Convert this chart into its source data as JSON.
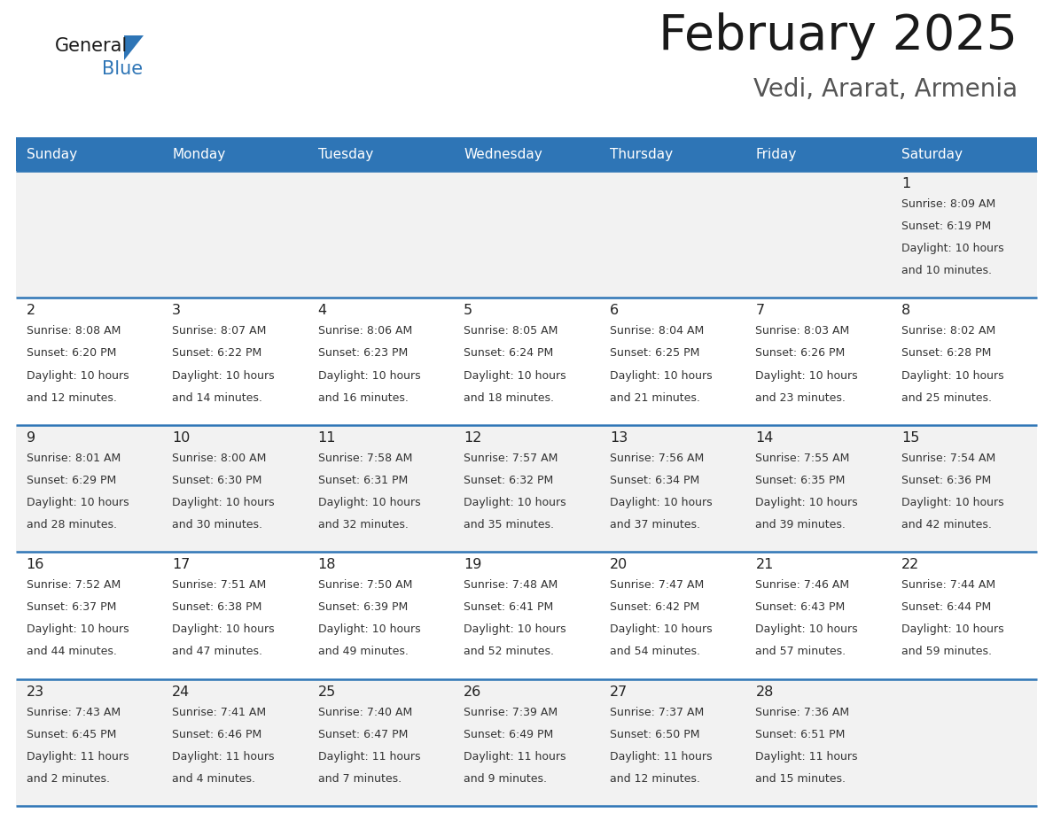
{
  "title": "February 2025",
  "subtitle": "Vedi, Ararat, Armenia",
  "header_bg": "#2e75b6",
  "header_text_color": "#ffffff",
  "days_of_week": [
    "Sunday",
    "Monday",
    "Tuesday",
    "Wednesday",
    "Thursday",
    "Friday",
    "Saturday"
  ],
  "grid_line_color": "#2e75b6",
  "row_bg": [
    "#f2f2f2",
    "#ffffff",
    "#f2f2f2",
    "#ffffff",
    "#f2f2f2"
  ],
  "calendar_data": [
    [
      null,
      null,
      null,
      null,
      null,
      null,
      {
        "day": 1,
        "sunrise": "8:09 AM",
        "sunset": "6:19 PM",
        "daylight": "10 hours and 10 minutes."
      }
    ],
    [
      {
        "day": 2,
        "sunrise": "8:08 AM",
        "sunset": "6:20 PM",
        "daylight": "10 hours and 12 minutes."
      },
      {
        "day": 3,
        "sunrise": "8:07 AM",
        "sunset": "6:22 PM",
        "daylight": "10 hours and 14 minutes."
      },
      {
        "day": 4,
        "sunrise": "8:06 AM",
        "sunset": "6:23 PM",
        "daylight": "10 hours and 16 minutes."
      },
      {
        "day": 5,
        "sunrise": "8:05 AM",
        "sunset": "6:24 PM",
        "daylight": "10 hours and 18 minutes."
      },
      {
        "day": 6,
        "sunrise": "8:04 AM",
        "sunset": "6:25 PM",
        "daylight": "10 hours and 21 minutes."
      },
      {
        "day": 7,
        "sunrise": "8:03 AM",
        "sunset": "6:26 PM",
        "daylight": "10 hours and 23 minutes."
      },
      {
        "day": 8,
        "sunrise": "8:02 AM",
        "sunset": "6:28 PM",
        "daylight": "10 hours and 25 minutes."
      }
    ],
    [
      {
        "day": 9,
        "sunrise": "8:01 AM",
        "sunset": "6:29 PM",
        "daylight": "10 hours and 28 minutes."
      },
      {
        "day": 10,
        "sunrise": "8:00 AM",
        "sunset": "6:30 PM",
        "daylight": "10 hours and 30 minutes."
      },
      {
        "day": 11,
        "sunrise": "7:58 AM",
        "sunset": "6:31 PM",
        "daylight": "10 hours and 32 minutes."
      },
      {
        "day": 12,
        "sunrise": "7:57 AM",
        "sunset": "6:32 PM",
        "daylight": "10 hours and 35 minutes."
      },
      {
        "day": 13,
        "sunrise": "7:56 AM",
        "sunset": "6:34 PM",
        "daylight": "10 hours and 37 minutes."
      },
      {
        "day": 14,
        "sunrise": "7:55 AM",
        "sunset": "6:35 PM",
        "daylight": "10 hours and 39 minutes."
      },
      {
        "day": 15,
        "sunrise": "7:54 AM",
        "sunset": "6:36 PM",
        "daylight": "10 hours and 42 minutes."
      }
    ],
    [
      {
        "day": 16,
        "sunrise": "7:52 AM",
        "sunset": "6:37 PM",
        "daylight": "10 hours and 44 minutes."
      },
      {
        "day": 17,
        "sunrise": "7:51 AM",
        "sunset": "6:38 PM",
        "daylight": "10 hours and 47 minutes."
      },
      {
        "day": 18,
        "sunrise": "7:50 AM",
        "sunset": "6:39 PM",
        "daylight": "10 hours and 49 minutes."
      },
      {
        "day": 19,
        "sunrise": "7:48 AM",
        "sunset": "6:41 PM",
        "daylight": "10 hours and 52 minutes."
      },
      {
        "day": 20,
        "sunrise": "7:47 AM",
        "sunset": "6:42 PM",
        "daylight": "10 hours and 54 minutes."
      },
      {
        "day": 21,
        "sunrise": "7:46 AM",
        "sunset": "6:43 PM",
        "daylight": "10 hours and 57 minutes."
      },
      {
        "day": 22,
        "sunrise": "7:44 AM",
        "sunset": "6:44 PM",
        "daylight": "10 hours and 59 minutes."
      }
    ],
    [
      {
        "day": 23,
        "sunrise": "7:43 AM",
        "sunset": "6:45 PM",
        "daylight": "11 hours and 2 minutes."
      },
      {
        "day": 24,
        "sunrise": "7:41 AM",
        "sunset": "6:46 PM",
        "daylight": "11 hours and 4 minutes."
      },
      {
        "day": 25,
        "sunrise": "7:40 AM",
        "sunset": "6:47 PM",
        "daylight": "11 hours and 7 minutes."
      },
      {
        "day": 26,
        "sunrise": "7:39 AM",
        "sunset": "6:49 PM",
        "daylight": "11 hours and 9 minutes."
      },
      {
        "day": 27,
        "sunrise": "7:37 AM",
        "sunset": "6:50 PM",
        "daylight": "11 hours and 12 minutes."
      },
      {
        "day": 28,
        "sunrise": "7:36 AM",
        "sunset": "6:51 PM",
        "daylight": "11 hours and 15 minutes."
      },
      null
    ]
  ]
}
